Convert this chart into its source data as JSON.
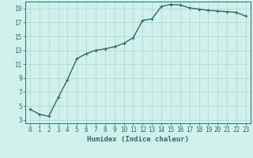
{
  "x": [
    0,
    1,
    2,
    3,
    4,
    5,
    6,
    7,
    8,
    9,
    10,
    11,
    12,
    13,
    14,
    15,
    16,
    17,
    18,
    19,
    20,
    21,
    22,
    23
  ],
  "y": [
    4.5,
    3.8,
    3.5,
    6.2,
    8.8,
    11.8,
    12.5,
    13.0,
    13.2,
    13.5,
    14.0,
    14.8,
    17.3,
    17.5,
    19.3,
    19.6,
    19.5,
    19.1,
    18.9,
    18.75,
    18.65,
    18.55,
    18.45,
    17.9
  ],
  "line_color": "#2d6b6b",
  "marker": "+",
  "marker_size": 3,
  "marker_linewidth": 0.8,
  "bg_color": "#cff0eb",
  "grid_color": "#b8d8d4",
  "xlabel": "Humidex (Indice chaleur)",
  "xlim_min": -0.5,
  "xlim_max": 23.5,
  "ylim_min": 2.5,
  "ylim_max": 20.0,
  "xticks": [
    0,
    1,
    2,
    3,
    4,
    5,
    6,
    7,
    8,
    9,
    10,
    11,
    12,
    13,
    14,
    15,
    16,
    17,
    18,
    19,
    20,
    21,
    22,
    23
  ],
  "yticks": [
    3,
    5,
    7,
    9,
    11,
    13,
    15,
    17,
    19
  ],
  "tick_label_color": "#2d6b6b",
  "xlabel_color": "#2d6b6b",
  "font_size": 5.5,
  "xlabel_fontsize": 6.5,
  "line_width": 1.0
}
